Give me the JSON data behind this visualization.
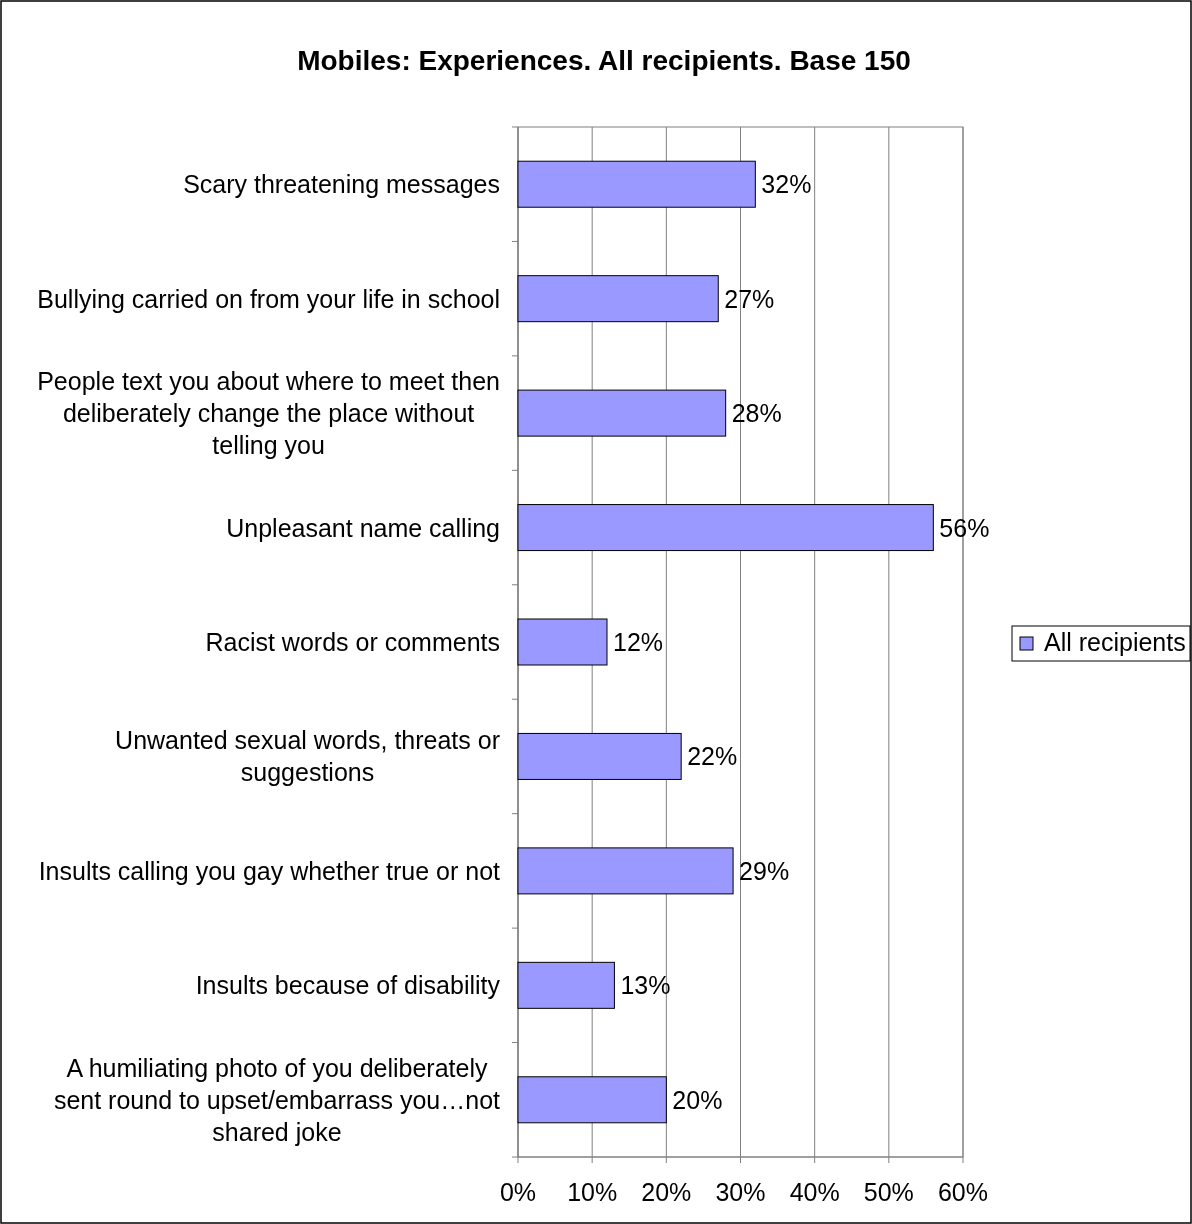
{
  "chart_data": {
    "type": "bar",
    "orientation": "horizontal",
    "title": "Mobiles: Experiences. All recipients. Base 150",
    "categories": [
      "Scary threatening messages",
      "Bullying carried on from your life in school",
      "People text you about where to meet then deliberately change the place without telling you",
      "Unpleasant name calling",
      "Racist words or comments",
      "Unwanted sexual words, threats or suggestions",
      "Insults calling you gay whether true or not",
      "Insults because of disability",
      "A humiliating photo of you deliberately sent round to upset/embarrass you…not shared joke"
    ],
    "series": [
      {
        "name": "All recipients",
        "color": "#9999ff",
        "values": [
          32,
          27,
          28,
          56,
          12,
          22,
          29,
          13,
          20
        ]
      }
    ],
    "value_labels": [
      "32%",
      "27%",
      "28%",
      "56%",
      "12%",
      "22%",
      "29%",
      "13%",
      "20%"
    ],
    "xlim": [
      0,
      60
    ],
    "xticks": [
      {
        "value": 0,
        "label": "0%"
      },
      {
        "value": 10,
        "label": "10%"
      },
      {
        "value": 20,
        "label": "20%"
      },
      {
        "value": 30,
        "label": "30%"
      },
      {
        "value": 40,
        "label": "40%"
      },
      {
        "value": 50,
        "label": "50%"
      },
      {
        "value": 60,
        "label": "60%"
      }
    ],
    "grid": "x",
    "legend": "right"
  }
}
